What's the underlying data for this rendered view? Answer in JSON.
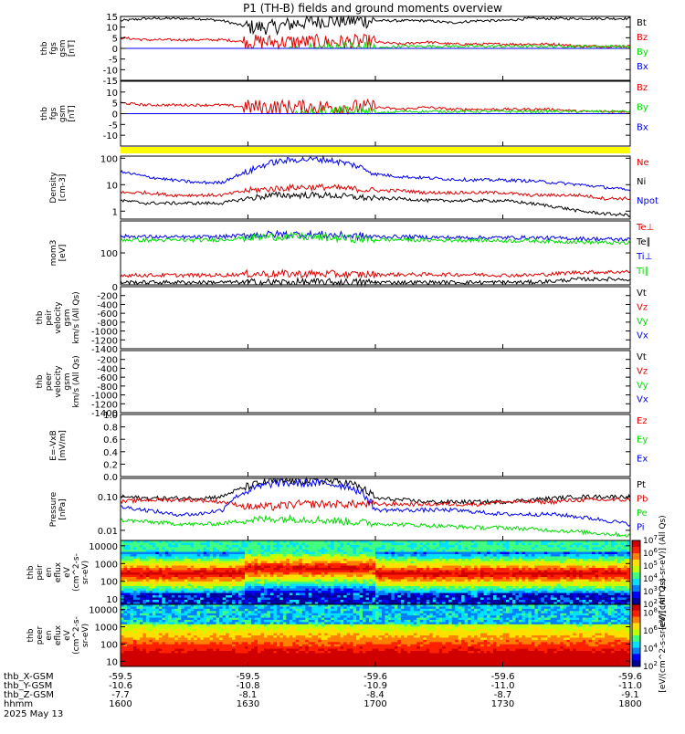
{
  "title": "P1 (TH-B) fields and ground moments overview",
  "date_label": "2025 May 13",
  "colors": {
    "black": "#000000",
    "red": "#e00000",
    "green": "#00dd00",
    "blue": "#0000ee",
    "yellow": "#ffff00"
  },
  "ephemeris": {
    "rows": [
      {
        "label": "thb_X-GSM",
        "values": [
          "-59.5",
          "-59.5",
          "-59.6",
          "-59.6",
          "-59.6"
        ]
      },
      {
        "label": "thb_Y-GSM",
        "values": [
          "-10.6",
          "-10.8",
          "-10.9",
          "-11.0",
          "-11.0"
        ]
      },
      {
        "label": "thb_Z-GSM",
        "values": [
          "-7.7",
          "-8.1",
          "-8.4",
          "-8.7",
          "-9.1"
        ]
      },
      {
        "label": "hhmm",
        "values": [
          "1600",
          "1630",
          "1700",
          "1730",
          "1800"
        ]
      }
    ]
  },
  "chart_data": [
    {
      "type": "line",
      "ylabel": "thb fgs gsm [nT]",
      "ylim": [
        -15,
        15
      ],
      "ticks": [
        "15",
        "10",
        "5",
        "0",
        "-5",
        "-10",
        "-15"
      ],
      "x_range_hhmm": [
        "1600",
        "1800"
      ],
      "series": [
        {
          "name": "Bt",
          "color": "black",
          "values": [
            13,
            14,
            14,
            14,
            13,
            10,
            10,
            12,
            13,
            13,
            13,
            13,
            13,
            12,
            13,
            13,
            14,
            14,
            14,
            14,
            14
          ]
        },
        {
          "name": "Bz",
          "color": "red",
          "values": [
            5,
            4,
            4,
            4,
            4,
            3,
            3,
            3,
            3,
            3,
            3,
            2,
            3,
            2,
            2,
            2,
            2,
            2,
            1,
            1,
            1
          ]
        },
        {
          "name": "By",
          "color": "green",
          "values": [
            -3,
            -2,
            -2,
            -2,
            -2,
            -4,
            -4,
            -2,
            0,
            0,
            0,
            1,
            1,
            1,
            1,
            1,
            1,
            1,
            1,
            1,
            1
          ]
        },
        {
          "name": "Bx",
          "color": "blue",
          "values": [
            -11,
            -13,
            -13,
            -13,
            -12,
            -9,
            -8,
            -10,
            -12,
            -11,
            -10,
            -10,
            -10,
            -11,
            -11,
            -11,
            -12,
            -12,
            -13,
            -13,
            -14
          ]
        }
      ]
    },
    {
      "type": "line",
      "ylabel": "thb fgs gsm [nT]",
      "ylim": [
        -15,
        15
      ],
      "ticks": [
        "10",
        "5",
        "0",
        "-5",
        "-10"
      ],
      "x_range_hhmm": [
        "1600",
        "1800"
      ],
      "series": [
        {
          "name": "Bz",
          "color": "red",
          "values": [
            5,
            4,
            4,
            4,
            4,
            3,
            3,
            3,
            3,
            3,
            3,
            2,
            3,
            2,
            2,
            2,
            2,
            2,
            1,
            1,
            1
          ]
        },
        {
          "name": "By",
          "color": "green",
          "values": [
            -3,
            -2,
            -2,
            -2,
            -2,
            -4,
            -4,
            -2,
            0,
            0,
            0,
            1,
            1,
            1,
            1,
            1,
            1,
            1,
            1,
            1,
            1
          ]
        },
        {
          "name": "Bx",
          "color": "blue",
          "values": [
            -7,
            -7,
            -6,
            -6,
            -5,
            -3,
            -3,
            -5,
            -5,
            -4,
            -4,
            -4,
            -4,
            -5,
            -5,
            -5,
            -5,
            -5,
            -6,
            -6,
            -6
          ]
        }
      ]
    },
    {
      "type": "line",
      "scale": "log",
      "ylabel": "Density [cm-3]",
      "ylim": [
        0.5,
        120
      ],
      "ticks": [
        "100",
        "10",
        "1"
      ],
      "x_range_hhmm": [
        "1600",
        "1800"
      ],
      "series": [
        {
          "name": "Ne",
          "color": "red",
          "values": [
            5,
            5,
            4,
            4,
            4,
            6,
            7,
            8,
            8,
            7,
            6,
            6,
            5,
            5,
            5,
            5,
            4,
            4,
            4,
            3,
            3
          ]
        },
        {
          "name": "Ni",
          "color": "black",
          "values": [
            2.5,
            2,
            2,
            2,
            2,
            3,
            4,
            4,
            4,
            3.5,
            3,
            3,
            2.5,
            2.5,
            2.5,
            2.5,
            2,
            1.5,
            1,
            0.8,
            0.7
          ]
        },
        {
          "name": "Npot",
          "color": "blue",
          "values": [
            30,
            20,
            15,
            12,
            12,
            30,
            70,
            90,
            90,
            60,
            25,
            20,
            18,
            16,
            15,
            15,
            14,
            12,
            10,
            8,
            6
          ]
        }
      ]
    },
    {
      "type": "line",
      "scale": "log",
      "ylabel": "mom3 [eV]",
      "ylim": [
        10,
        1000
      ],
      "ticks": [
        "100"
      ],
      "x_range_hhmm": [
        "1600",
        "1800"
      ],
      "series": [
        {
          "name": "Te⊥",
          "color": "red",
          "values": [
            20,
            20,
            20,
            20,
            20,
            22,
            22,
            22,
            22,
            21,
            21,
            21,
            21,
            21,
            21,
            20,
            20,
            22,
            25,
            25,
            26
          ]
        },
        {
          "name": "Te∥",
          "color": "black",
          "values": [
            12,
            12,
            12,
            12,
            12,
            12,
            12,
            12,
            12,
            12,
            12,
            12,
            12,
            12,
            12,
            12,
            12,
            13,
            15,
            15,
            15
          ]
        },
        {
          "name": "Ti⊥",
          "color": "blue",
          "values": [
            330,
            320,
            310,
            310,
            320,
            360,
            380,
            380,
            370,
            340,
            320,
            320,
            310,
            300,
            300,
            300,
            300,
            290,
            280,
            270,
            260
          ]
        },
        {
          "name": "Ti∥",
          "color": "green",
          "values": [
            260,
            250,
            250,
            250,
            260,
            300,
            320,
            320,
            300,
            280,
            260,
            260,
            250,
            250,
            250,
            240,
            240,
            230,
            220,
            210,
            200
          ]
        }
      ]
    },
    {
      "type": "line",
      "ylabel": "thb peir velocity gsm [km/s (All Qs)]",
      "ylim": [
        -1400,
        0
      ],
      "ticks": [
        "0",
        "-200",
        "-400",
        "-600",
        "-800",
        "-1000",
        "-1200",
        "-1400"
      ],
      "x_range_hhmm": [
        "1600",
        "1800"
      ],
      "series": [
        {
          "name": "Vt",
          "color": "black",
          "values": []
        },
        {
          "name": "Vz",
          "color": "red",
          "values": []
        },
        {
          "name": "Vy",
          "color": "green",
          "values": []
        },
        {
          "name": "Vx",
          "color": "blue",
          "values": []
        }
      ]
    },
    {
      "type": "line",
      "ylabel": "thb peer velocity gsm [km/s (All Qs)]",
      "ylim": [
        -1400,
        0
      ],
      "ticks": [
        "-200",
        "-400",
        "-600",
        "-800",
        "-1000",
        "-1200",
        "-1400"
      ],
      "x_range_hhmm": [
        "1600",
        "1800"
      ],
      "series": [
        {
          "name": "Vt",
          "color": "black",
          "values": []
        },
        {
          "name": "Vz",
          "color": "red",
          "values": []
        },
        {
          "name": "Vy",
          "color": "green",
          "values": []
        },
        {
          "name": "Vx",
          "color": "blue",
          "values": []
        }
      ]
    },
    {
      "type": "line",
      "ylabel": "E=-VxB [mV/m]",
      "ylim": [
        0,
        1
      ],
      "ticks": [
        "1.0",
        "0.8",
        "0.6",
        "0.4",
        "0.2",
        "0.0"
      ],
      "x_range_hhmm": [
        "1600",
        "1800"
      ],
      "series": [
        {
          "name": "Ez",
          "color": "red",
          "values": []
        },
        {
          "name": "Ey",
          "color": "green",
          "values": []
        },
        {
          "name": "Ex",
          "color": "blue",
          "values": []
        }
      ]
    },
    {
      "type": "line",
      "scale": "log",
      "ylabel": "Pressure [nPa]",
      "ylim": [
        0.005,
        0.35
      ],
      "ticks": [
        "0.10",
        "0.01"
      ],
      "x_range_hhmm": [
        "1600",
        "1800"
      ],
      "series": [
        {
          "name": "Pt",
          "color": "black",
          "values": [
            0.1,
            0.09,
            0.09,
            0.09,
            0.1,
            0.2,
            0.3,
            0.3,
            0.3,
            0.25,
            0.09,
            0.08,
            0.07,
            0.07,
            0.07,
            0.07,
            0.08,
            0.09,
            0.1,
            0.1,
            0.1
          ]
        },
        {
          "name": "Pb",
          "color": "red",
          "values": [
            0.07,
            0.08,
            0.08,
            0.08,
            0.07,
            0.05,
            0.05,
            0.06,
            0.06,
            0.06,
            0.06,
            0.06,
            0.06,
            0.06,
            0.06,
            0.07,
            0.07,
            0.07,
            0.08,
            0.08,
            0.08
          ]
        },
        {
          "name": "Pe",
          "color": "green",
          "values": [
            0.02,
            0.018,
            0.016,
            0.015,
            0.016,
            0.02,
            0.022,
            0.022,
            0.02,
            0.018,
            0.016,
            0.015,
            0.014,
            0.013,
            0.012,
            0.012,
            0.011,
            0.01,
            0.009,
            0.008,
            0.007
          ]
        },
        {
          "name": "Pi",
          "color": "blue",
          "values": [
            0.05,
            0.04,
            0.03,
            0.03,
            0.04,
            0.15,
            0.25,
            0.25,
            0.25,
            0.2,
            0.04,
            0.04,
            0.04,
            0.04,
            0.035,
            0.03,
            0.03,
            0.03,
            0.025,
            0.02,
            0.015
          ]
        }
      ]
    },
    {
      "type": "heatmap",
      "ylabel": "thb peir en eflux eV (cm^2-s-sr-eV)",
      "scale": "log",
      "ylim": [
        5,
        20000
      ],
      "ticks": [
        "10000",
        "1000",
        "100",
        "10"
      ],
      "x_range_hhmm": [
        "1600",
        "1800"
      ],
      "colorbar": {
        "range_exp": [
          2,
          7
        ],
        "ticks": [
          "10^7",
          "10^6",
          "10^5",
          "10^4",
          "10^3",
          "10^2"
        ],
        "label": "[eV/(cm^2-s-sr-eV)] (All Qs)"
      }
    },
    {
      "type": "heatmap",
      "ylabel": "thb peer en eflux eV (cm^2-s-sr-eV)",
      "scale": "log",
      "ylim": [
        5,
        20000
      ],
      "ticks": [
        "10000",
        "1000",
        "100",
        "10"
      ],
      "x_range_hhmm": [
        "1600",
        "1800"
      ],
      "colorbar": {
        "range_exp": [
          2,
          9
        ],
        "ticks": [
          "10^8",
          "10^6",
          "10^4",
          "10^2"
        ],
        "label": "[eV/(cm^2-s-sr-eV)] (All Qs)"
      }
    }
  ]
}
